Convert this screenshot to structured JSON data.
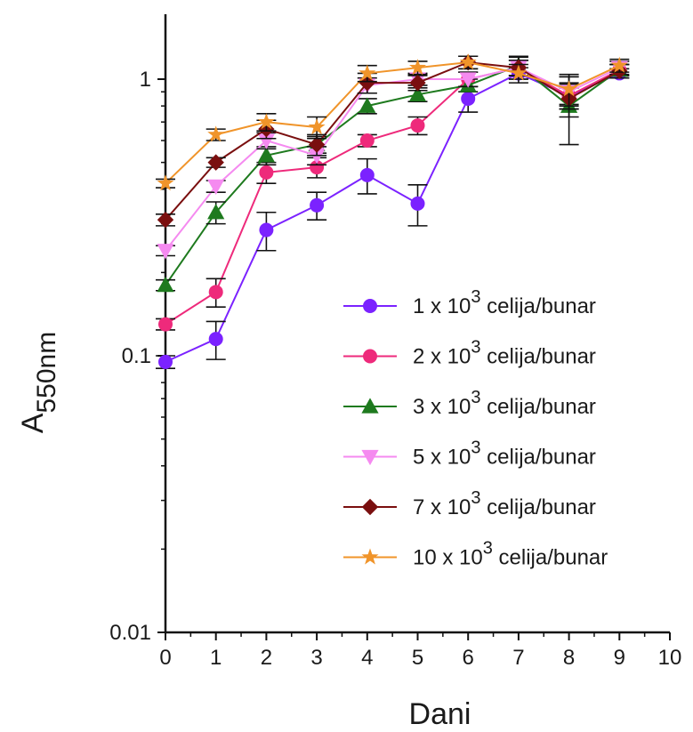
{
  "chart_data": {
    "type": "line",
    "xlabel": "Dani",
    "ylabel": {
      "main": "A",
      "sub": "550nm"
    },
    "xlim": [
      0,
      10
    ],
    "ylim": [
      0.01,
      1.7
    ],
    "y_scale": "log",
    "x_ticks": [
      0,
      1,
      2,
      3,
      4,
      5,
      6,
      7,
      8,
      9,
      10
    ],
    "x_tick_labels": [
      "0",
      "1",
      "2",
      "3",
      "4",
      "5",
      "6",
      "7",
      "8",
      "9",
      "10"
    ],
    "y_ticks": [
      0.01,
      0.1,
      1
    ],
    "y_tick_labels": [
      "0.01",
      "0.1",
      "1"
    ],
    "grid": false,
    "legend_position": "right",
    "x": [
      0,
      1,
      2,
      3,
      4,
      5,
      6,
      7,
      8,
      9
    ],
    "series": [
      {
        "name": {
          "pre": "1 x 10",
          "sup": "3",
          "post": " celija/bunar"
        },
        "color": "#7b22ff",
        "marker": "circle",
        "values": [
          0.095,
          0.115,
          0.285,
          0.35,
          0.45,
          0.355,
          0.85,
          1.05,
          0.87,
          1.05
        ],
        "errors": [
          0.005,
          0.018,
          0.045,
          0.04,
          0.065,
          0.06,
          0.09,
          0.05,
          0.06,
          0.04
        ]
      },
      {
        "name": {
          "pre": "2 x 10",
          "sup": "3",
          "post": " celija/bunar"
        },
        "color": "#ee2a7b",
        "marker": "circle",
        "values": [
          0.13,
          0.17,
          0.46,
          0.48,
          0.6,
          0.68,
          1.0,
          1.1,
          0.87,
          1.08
        ],
        "errors": [
          0.006,
          0.02,
          0.04,
          0.04,
          0.03,
          0.05,
          0.06,
          0.07,
          0.09,
          0.05
        ]
      },
      {
        "name": {
          "pre": "3 x 10",
          "sup": "3",
          "post": " celija/bunar"
        },
        "color": "#1e7a1e",
        "marker": "triangle-up",
        "values": [
          0.18,
          0.33,
          0.53,
          0.58,
          0.8,
          0.88,
          0.95,
          1.12,
          0.8,
          1.08
        ],
        "errors": [
          0.008,
          0.03,
          0.04,
          0.04,
          0.05,
          0.05,
          0.05,
          0.09,
          0.22,
          0.05
        ]
      },
      {
        "name": {
          "pre": "5 x 10",
          "sup": "3",
          "post": " celija/bunar"
        },
        "color": "#f58af0",
        "marker": "triangle-down",
        "values": [
          0.24,
          0.41,
          0.6,
          0.53,
          0.95,
          1.0,
          1.0,
          1.1,
          0.9,
          1.1
        ],
        "errors": [
          0.01,
          0.02,
          0.04,
          0.04,
          0.06,
          0.05,
          0.06,
          0.07,
          0.12,
          0.06
        ]
      },
      {
        "name": {
          "pre": "7 x 10",
          "sup": "3",
          "post": " celija/bunar"
        },
        "color": "#7a0f0f",
        "marker": "diamond",
        "values": [
          0.31,
          0.5,
          0.66,
          0.58,
          0.97,
          0.97,
          1.15,
          1.1,
          0.85,
          1.07
        ],
        "errors": [
          0.015,
          0.02,
          0.05,
          0.05,
          0.08,
          0.06,
          0.06,
          0.1,
          0.12,
          0.06
        ]
      },
      {
        "name": {
          "pre": "10 x 10",
          "sup": "3",
          "post": " celija/bunar"
        },
        "color": "#f0942a",
        "marker": "star",
        "values": [
          0.42,
          0.63,
          0.7,
          0.67,
          1.05,
          1.1,
          1.15,
          1.05,
          0.92,
          1.12
        ],
        "errors": [
          0.015,
          0.03,
          0.05,
          0.06,
          0.07,
          0.06,
          0.06,
          0.08,
          0.12,
          0.06
        ]
      }
    ]
  }
}
